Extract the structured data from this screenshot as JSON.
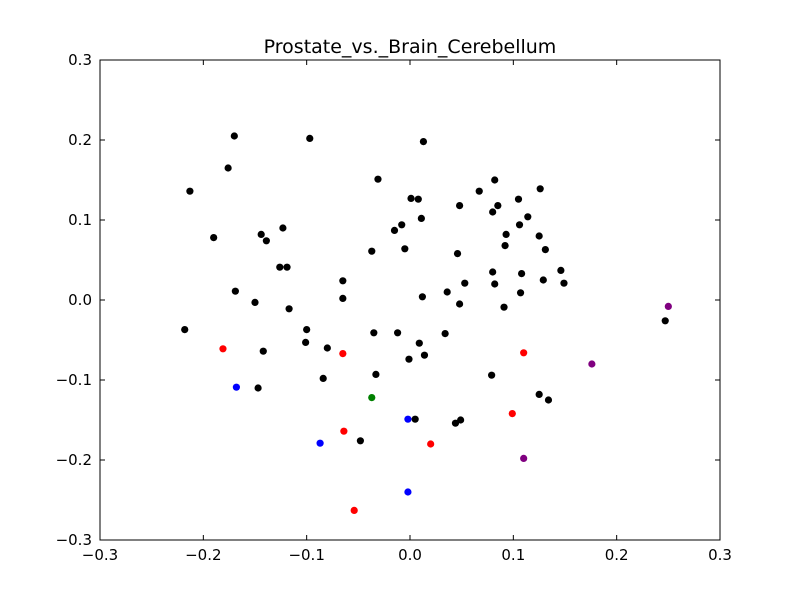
{
  "chart_data": {
    "type": "scatter",
    "title": "Prostate_vs._Brain_Cerebellum",
    "xlabel": "",
    "ylabel": "",
    "xlim": [
      -0.3,
      0.3
    ],
    "ylim": [
      -0.3,
      0.3
    ],
    "grid": false,
    "legend": "none",
    "x_ticks": [
      -0.3,
      -0.2,
      -0.1,
      0.0,
      0.1,
      0.2,
      0.3
    ],
    "y_ticks": [
      -0.3,
      -0.2,
      -0.1,
      0.0,
      0.1,
      0.2,
      0.3
    ],
    "x_tick_labels": [
      "−0.3",
      "−0.2",
      "−0.1",
      "0.0",
      "0.1",
      "0.2",
      "0.3"
    ],
    "y_tick_labels": [
      "−0.3",
      "−0.2",
      "−0.1",
      "0.0",
      "0.1",
      "0.2",
      "0.3"
    ],
    "series": [
      {
        "color": "#000000",
        "points": [
          [
            -0.17,
            0.205
          ],
          [
            -0.097,
            0.202
          ],
          [
            0.013,
            0.198
          ],
          [
            -0.176,
            0.165
          ],
          [
            -0.031,
            0.151
          ],
          [
            -0.213,
            0.136
          ],
          [
            0.082,
            0.15
          ],
          [
            0.067,
            0.136
          ],
          [
            0.126,
            0.139
          ],
          [
            0.001,
            0.127
          ],
          [
            0.008,
            0.126
          ],
          [
            0.048,
            0.118
          ],
          [
            0.085,
            0.118
          ],
          [
            0.105,
            0.126
          ],
          [
            0.08,
            0.11
          ],
          [
            0.114,
            0.104
          ],
          [
            0.011,
            0.102
          ],
          [
            -0.008,
            0.094
          ],
          [
            -0.123,
            0.09
          ],
          [
            -0.015,
            0.087
          ],
          [
            0.093,
            0.082
          ],
          [
            0.106,
            0.094
          ],
          [
            -0.144,
            0.082
          ],
          [
            0.125,
            0.08
          ],
          [
            -0.19,
            0.078
          ],
          [
            -0.139,
            0.074
          ],
          [
            0.092,
            0.068
          ],
          [
            -0.005,
            0.064
          ],
          [
            0.131,
            0.063
          ],
          [
            -0.037,
            0.061
          ],
          [
            0.046,
            0.058
          ],
          [
            -0.126,
            0.041
          ],
          [
            -0.119,
            0.041
          ],
          [
            0.146,
            0.037
          ],
          [
            0.08,
            0.035
          ],
          [
            0.108,
            0.033
          ],
          [
            -0.065,
            0.024
          ],
          [
            0.129,
            0.025
          ],
          [
            0.053,
            0.021
          ],
          [
            0.149,
            0.021
          ],
          [
            0.082,
            0.02
          ],
          [
            -0.169,
            0.011
          ],
          [
            0.036,
            0.01
          ],
          [
            0.107,
            0.009
          ],
          [
            0.012,
            0.004
          ],
          [
            -0.065,
            0.002
          ],
          [
            -0.15,
            -0.003
          ],
          [
            0.048,
            -0.005
          ],
          [
            -0.117,
            -0.011
          ],
          [
            0.091,
            -0.009
          ],
          [
            -0.218,
            -0.037
          ],
          [
            -0.1,
            -0.037
          ],
          [
            -0.035,
            -0.041
          ],
          [
            -0.012,
            -0.041
          ],
          [
            0.034,
            -0.042
          ],
          [
            -0.101,
            -0.053
          ],
          [
            0.009,
            -0.054
          ],
          [
            -0.08,
            -0.06
          ],
          [
            -0.142,
            -0.064
          ],
          [
            0.014,
            -0.069
          ],
          [
            -0.001,
            -0.074
          ],
          [
            -0.033,
            -0.093
          ],
          [
            0.079,
            -0.094
          ],
          [
            -0.084,
            -0.098
          ],
          [
            -0.147,
            -0.11
          ],
          [
            0.125,
            -0.118
          ],
          [
            0.134,
            -0.125
          ],
          [
            0.005,
            -0.149
          ],
          [
            0.049,
            -0.15
          ],
          [
            0.044,
            -0.154
          ],
          [
            -0.048,
            -0.176
          ],
          [
            0.247,
            -0.026
          ]
        ]
      },
      {
        "color": "#ff0000",
        "points": [
          [
            -0.181,
            -0.061
          ],
          [
            -0.065,
            -0.067
          ],
          [
            0.11,
            -0.066
          ],
          [
            0.099,
            -0.142
          ],
          [
            -0.064,
            -0.164
          ],
          [
            0.02,
            -0.18
          ],
          [
            -0.054,
            -0.263
          ]
        ]
      },
      {
        "color": "#0000ff",
        "points": [
          [
            -0.168,
            -0.109
          ],
          [
            -0.002,
            -0.149
          ],
          [
            -0.087,
            -0.179
          ],
          [
            -0.002,
            -0.24
          ]
        ]
      },
      {
        "color": "#008000",
        "points": [
          [
            -0.037,
            -0.122
          ]
        ]
      },
      {
        "color": "#800080",
        "points": [
          [
            0.25,
            -0.008
          ],
          [
            0.176,
            -0.08
          ],
          [
            0.11,
            -0.198
          ]
        ]
      }
    ]
  }
}
